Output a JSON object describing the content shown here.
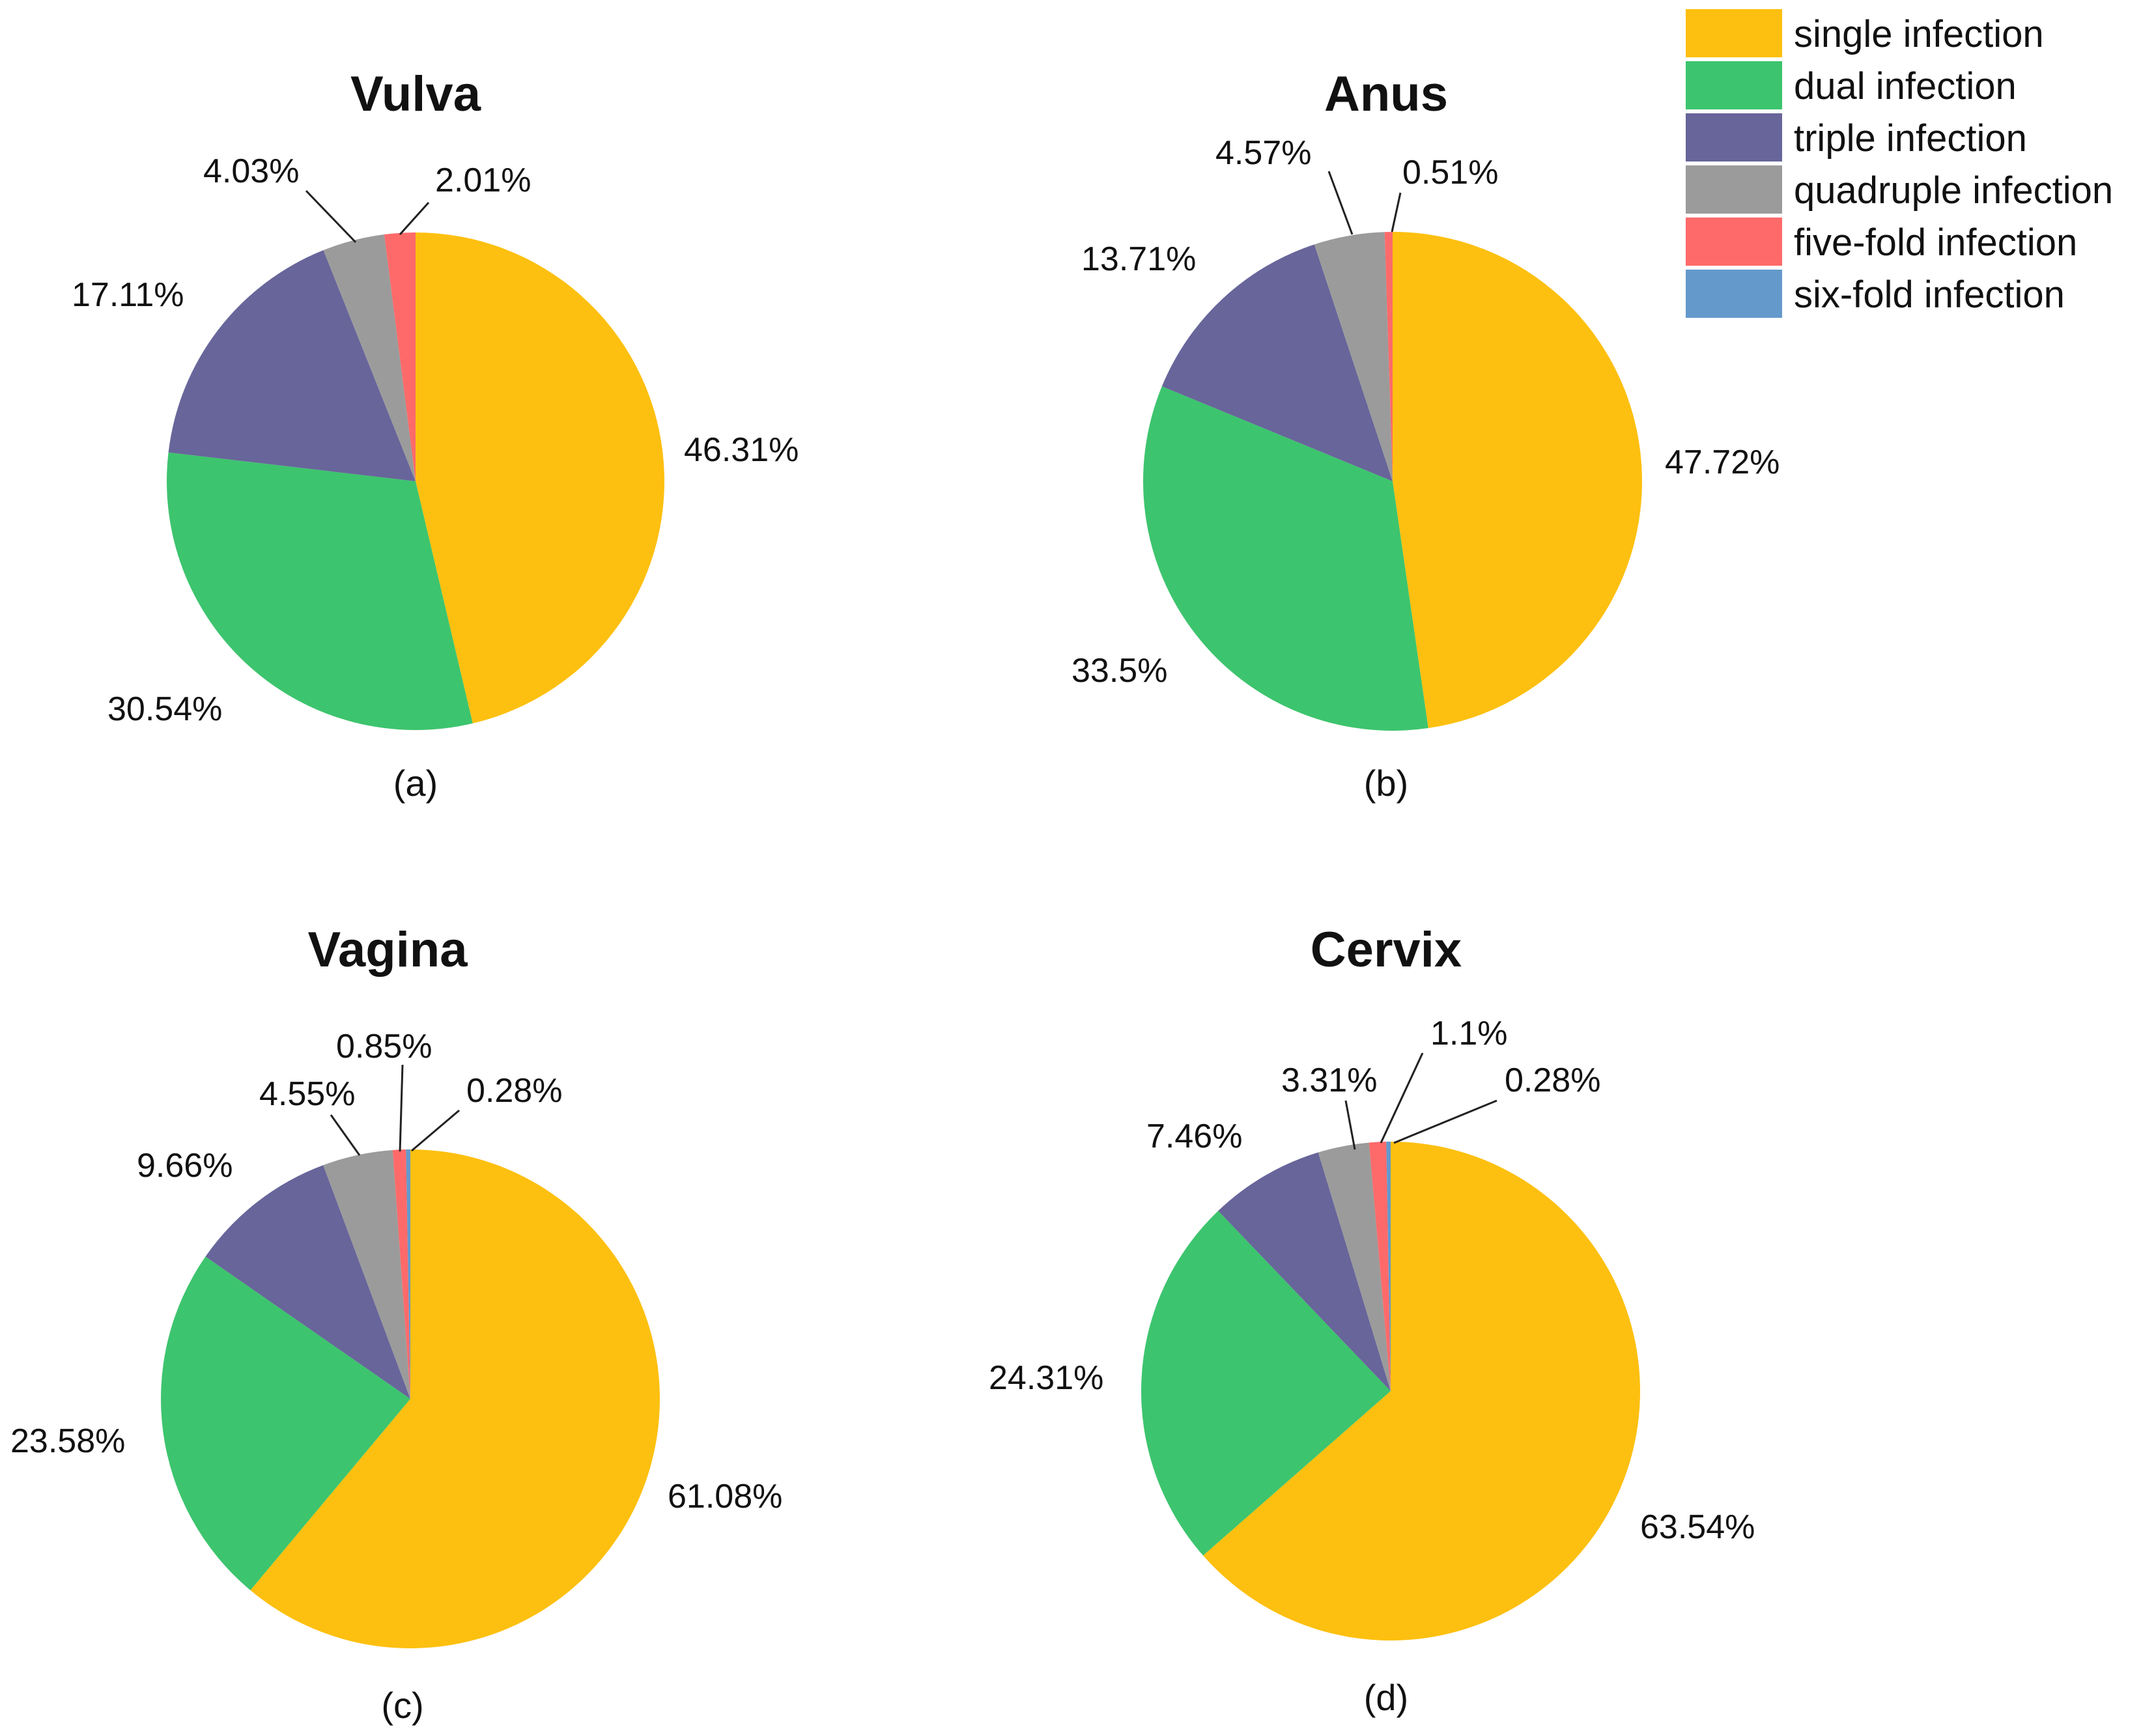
{
  "chart_data": [
    {
      "type": "pie",
      "title": "Vulva",
      "caption": "(a)",
      "categories": [
        "single infection",
        "dual infection",
        "triple infection",
        "quadruple infection",
        "five-fold infection"
      ],
      "values": [
        46.31,
        30.54,
        17.11,
        4.03,
        2.01
      ],
      "labels": [
        "46.31%",
        "30.54%",
        "17.11%",
        "4.03%",
        "2.01%"
      ]
    },
    {
      "type": "pie",
      "title": "Anus",
      "caption": "(b)",
      "categories": [
        "single infection",
        "dual infection",
        "triple infection",
        "quadruple infection",
        "five-fold infection"
      ],
      "values": [
        47.72,
        33.5,
        13.71,
        4.57,
        0.51
      ],
      "labels": [
        "47.72%",
        "33.5%",
        "13.71%",
        "4.57%",
        "0.51%"
      ]
    },
    {
      "type": "pie",
      "title": "Vagina",
      "caption": "(c)",
      "categories": [
        "single infection",
        "dual infection",
        "triple infection",
        "quadruple infection",
        "five-fold infection",
        "six-fold infection"
      ],
      "values": [
        61.08,
        23.58,
        9.66,
        4.55,
        0.85,
        0.28
      ],
      "labels": [
        "61.08%",
        "23.58%",
        "9.66%",
        "4.55%",
        "0.85%",
        "0.28%"
      ]
    },
    {
      "type": "pie",
      "title": "Cervix",
      "caption": "(d)",
      "categories": [
        "single infection",
        "dual infection",
        "triple infection",
        "quadruple infection",
        "five-fold infection",
        "six-fold infection"
      ],
      "values": [
        63.54,
        24.31,
        7.46,
        3.31,
        1.1,
        0.28
      ],
      "labels": [
        "63.54%",
        "24.31%",
        "7.46%",
        "3.31%",
        "1.1%",
        "0.28%"
      ]
    }
  ],
  "legend": {
    "placement": "top-right",
    "items": [
      {
        "label": "single infection",
        "color": "#FDC010"
      },
      {
        "label": "dual infection",
        "color": "#3DC46E"
      },
      {
        "label": "triple infection",
        "color": "#67659A"
      },
      {
        "label": "quadruple infection",
        "color": "#9B9B9B"
      },
      {
        "label": "five-fold infection",
        "color": "#FE6A6A"
      },
      {
        "label": "six-fold infection",
        "color": "#6499CC"
      }
    ]
  }
}
